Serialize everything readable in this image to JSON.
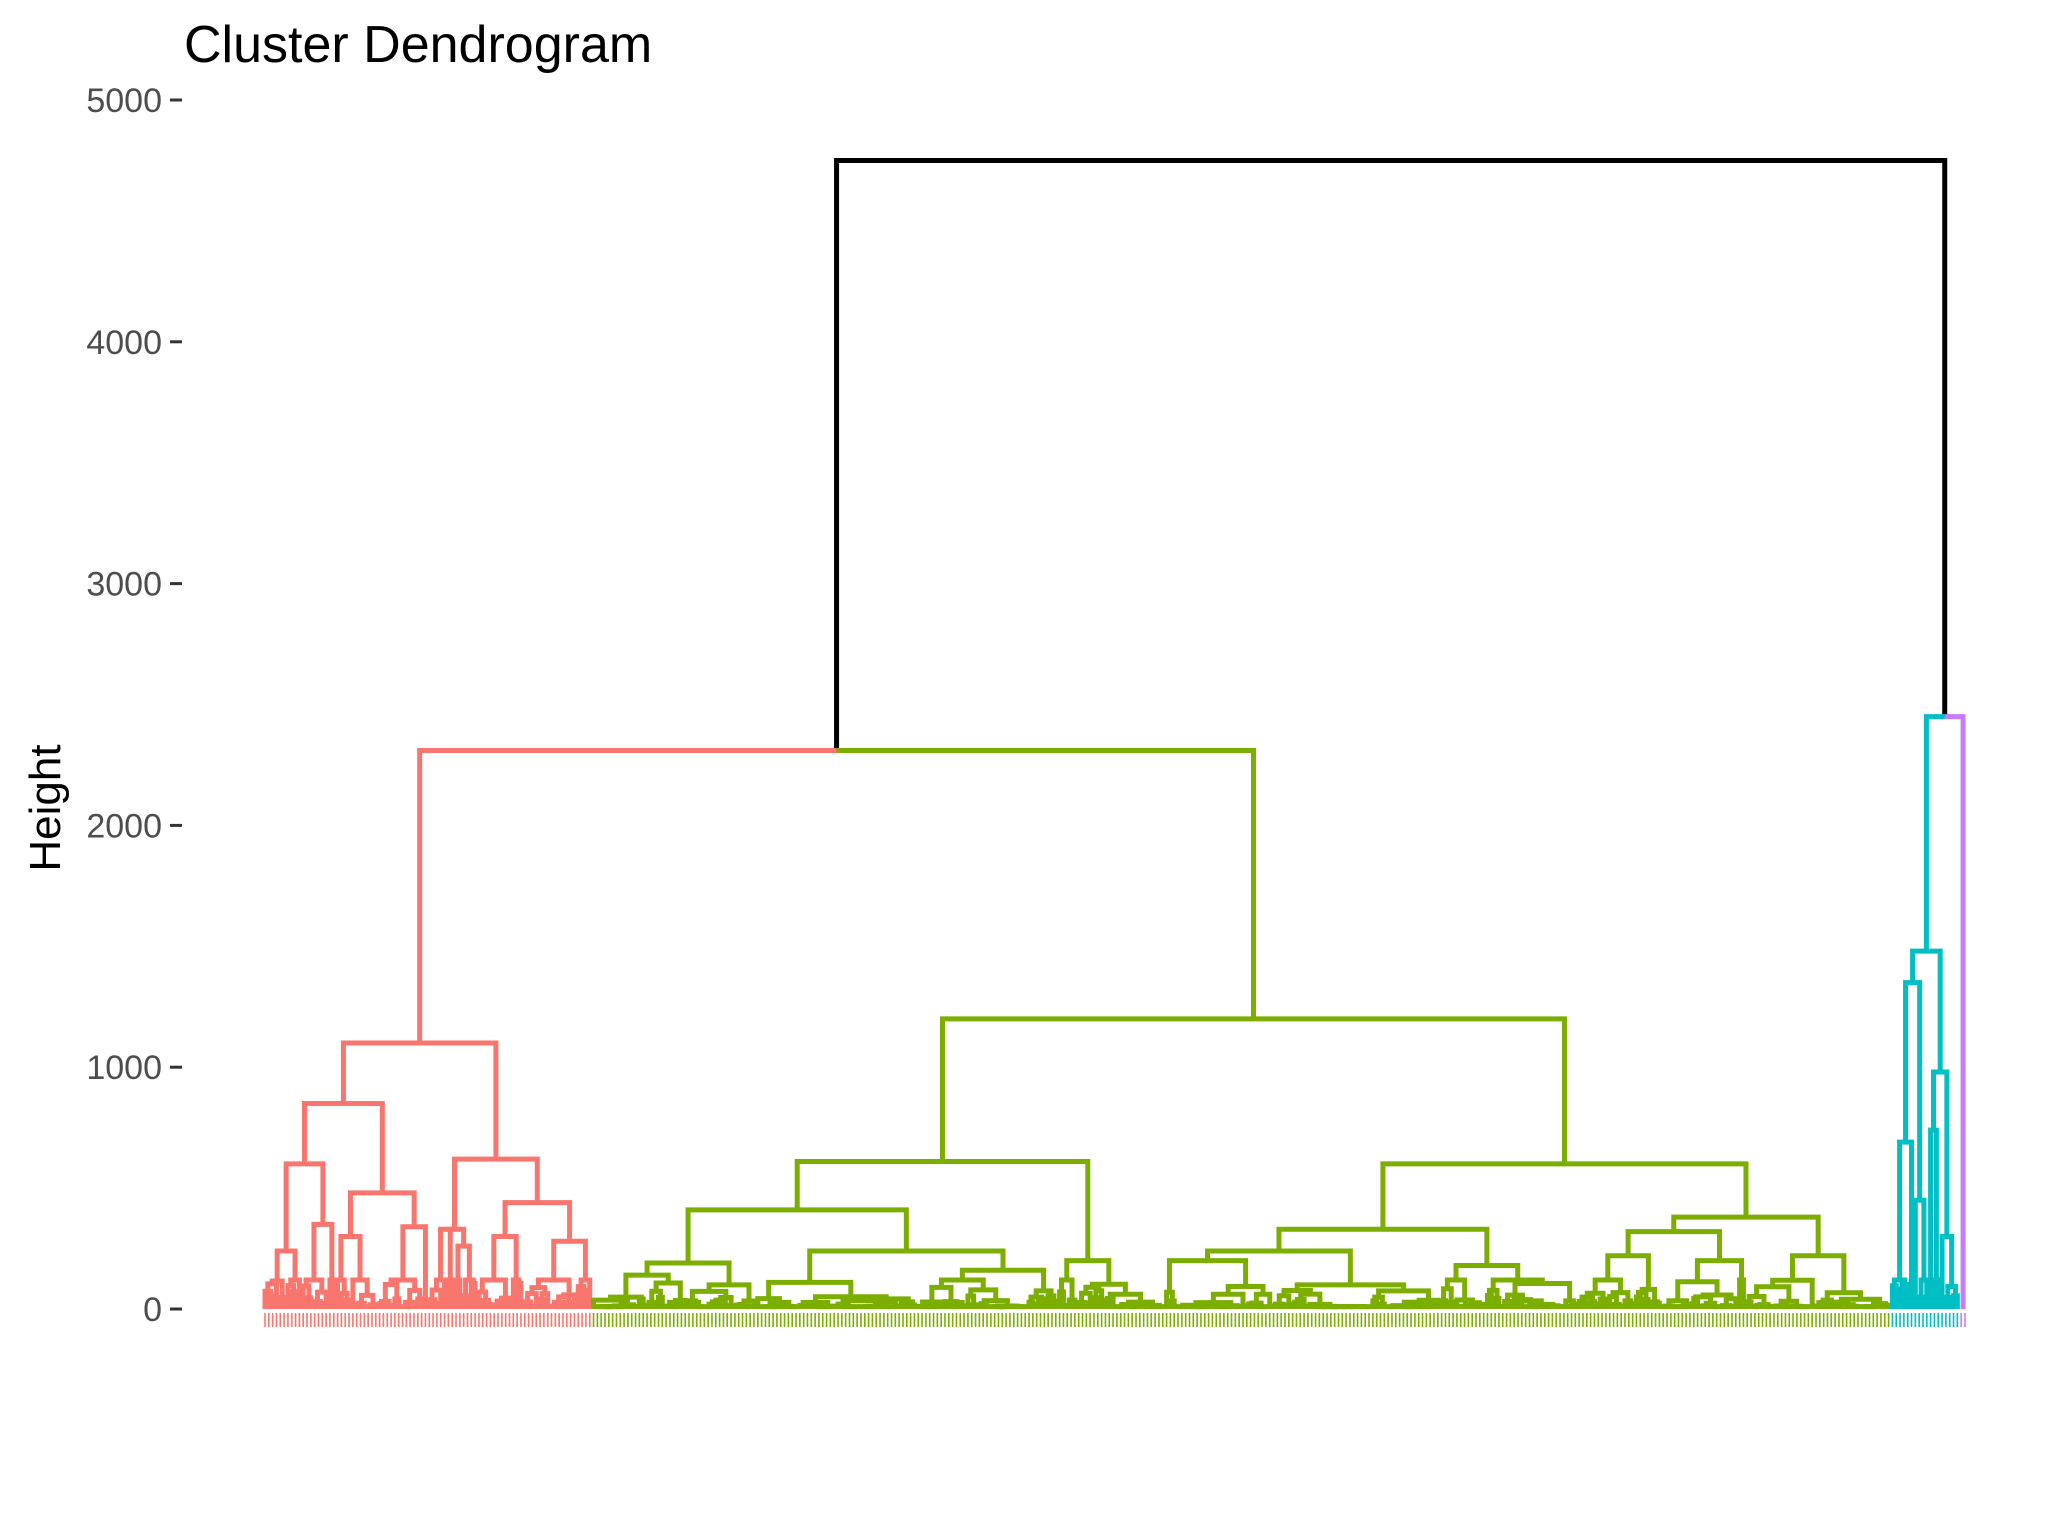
{
  "chart_data": {
    "type": "dendrogram",
    "title": "Cluster Dendrogram",
    "xlabel": "",
    "ylabel": "Height",
    "ylim": [
      0,
      5000
    ],
    "yticks": [
      0,
      1000,
      2000,
      3000,
      4000,
      5000
    ],
    "grid": false,
    "legend": "none",
    "colors": {
      "root": "#000000",
      "cluster_1": "#F8766D",
      "cluster_2": "#7CAE00",
      "cluster_3": "#00BFC4",
      "cluster_4": "#C77CFF"
    },
    "leaf_count": 500,
    "merges": [
      {
        "height": 4750,
        "joins": [
          "clusters 1-2",
          "clusters 3-4"
        ],
        "color": "root"
      },
      {
        "height": 2310,
        "joins": [
          "cluster_1",
          "cluster_2"
        ],
        "color": "root"
      },
      {
        "height": 2450,
        "joins": [
          "cluster_3",
          "cluster_4"
        ],
        "color": "root"
      },
      {
        "height": 1100,
        "cluster": "cluster_1"
      },
      {
        "height": 850,
        "cluster": "cluster_1"
      },
      {
        "height": 620,
        "cluster": "cluster_1"
      },
      {
        "height": 600,
        "cluster": "cluster_1"
      },
      {
        "height": 480,
        "cluster": "cluster_1"
      },
      {
        "height": 440,
        "cluster": "cluster_1"
      },
      {
        "height": 1200,
        "cluster": "cluster_2"
      },
      {
        "height": 610,
        "cluster": "cluster_2"
      },
      {
        "height": 600,
        "cluster": "cluster_2"
      },
      {
        "height": 410,
        "cluster": "cluster_2"
      },
      {
        "height": 380,
        "cluster": "cluster_2"
      },
      {
        "height": 330,
        "cluster": "cluster_2"
      },
      {
        "height": 240,
        "cluster": "cluster_2"
      },
      {
        "height": 1480,
        "cluster": "cluster_3"
      },
      {
        "height": 1350,
        "cluster": "cluster_3"
      },
      {
        "height": 980,
        "cluster": "cluster_3"
      },
      {
        "height": 740,
        "cluster": "cluster_3"
      },
      {
        "height": 690,
        "cluster": "cluster_3"
      }
    ]
  }
}
